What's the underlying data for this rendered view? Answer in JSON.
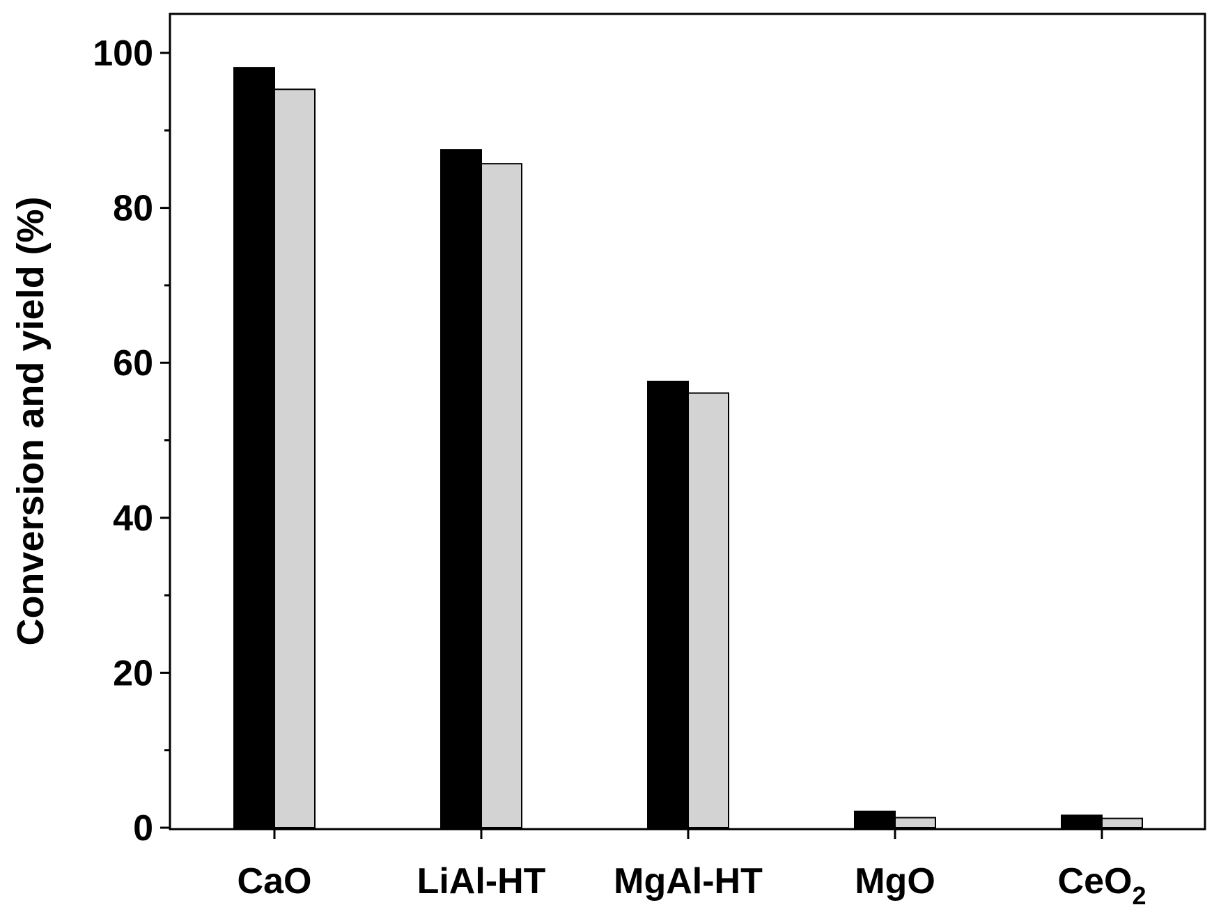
{
  "chart_data": {
    "type": "bar",
    "title": "",
    "xlabel": "",
    "ylabel": "Conversion and yield (%)",
    "ylim": [
      0,
      105
    ],
    "yticks": [
      0,
      20,
      40,
      60,
      80,
      100
    ],
    "yticks_minor": [
      10,
      30,
      50,
      70,
      90
    ],
    "categories": [
      {
        "base": "CaO",
        "sub": ""
      },
      {
        "base": "LiAl-HT",
        "sub": ""
      },
      {
        "base": "MgAl-HT",
        "sub": ""
      },
      {
        "base": "MgO",
        "sub": ""
      },
      {
        "base": "CeO",
        "sub": "2"
      }
    ],
    "series": [
      {
        "color": "#000000",
        "values": [
          98.1,
          87.5,
          57.6,
          2.1,
          1.6
        ]
      },
      {
        "color": "#d3d3d3",
        "values": [
          95.3,
          85.7,
          56.1,
          1.3,
          1.2
        ]
      }
    ],
    "grid": false,
    "legend": "none"
  }
}
